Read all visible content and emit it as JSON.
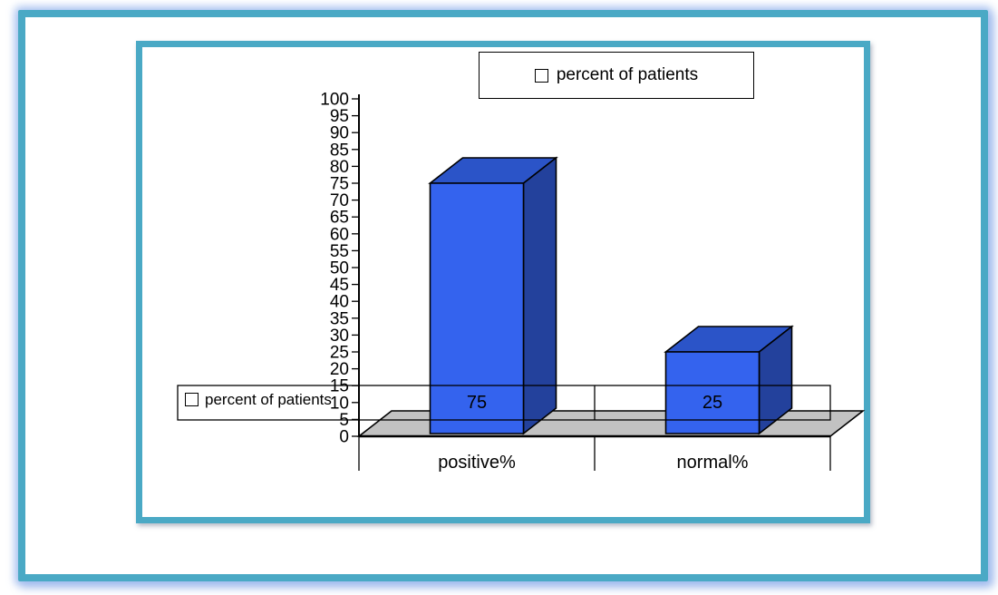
{
  "window": {
    "background": "#ffffff"
  },
  "frame": {
    "border_color": "#4AA9C5",
    "style": "double rounded teal border with soft blue glow"
  },
  "legend_top": {
    "label": "percent of patients",
    "swatch_color": "#3A62E8"
  },
  "legend_left": {
    "label": "percent of patients",
    "swatch_color": "#3A62E8"
  },
  "chart_data": {
    "type": "bar",
    "projection": "3d-column",
    "title": "",
    "xlabel": "",
    "ylabel": "",
    "categories": [
      "positive%",
      "normal%"
    ],
    "series": [
      {
        "name": "percent of patients",
        "values": [
          75,
          25
        ]
      }
    ],
    "data_labels": [
      "75",
      "25"
    ],
    "ylim": [
      0,
      100
    ],
    "ytick_step": 5,
    "grid": false,
    "legend_position": "top-center",
    "bar_colors": {
      "front": "#3463EE",
      "top": "#2B54C8",
      "side": "#23419C"
    },
    "floor_color": "#C2C2C2",
    "axis_color": "#000000",
    "overlay_box": {
      "note": "stretched legend frame crossing the plot",
      "stroke": "#000000"
    }
  }
}
